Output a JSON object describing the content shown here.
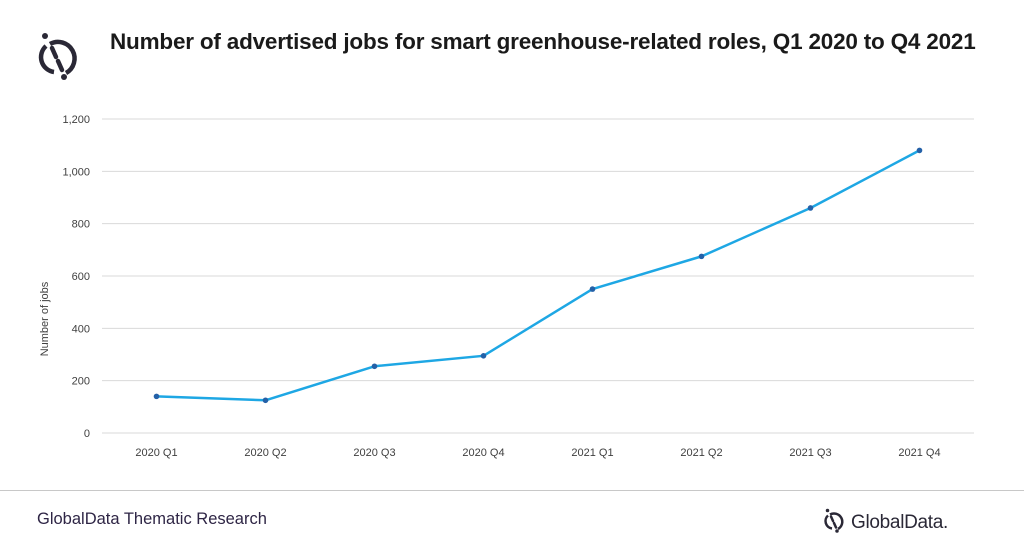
{
  "header": {
    "title": "Number of advertised jobs for smart greenhouse-related roles, Q1 2020 to Q4 2021",
    "logo_icon": "globaldata-logo-icon"
  },
  "footer": {
    "source": "GlobalData Thematic Research",
    "brand": "GlobalData."
  },
  "colors": {
    "line": "#1ea7e4",
    "marker": "#2461a8",
    "grid": "#d9d9d9",
    "brand": "#2a2836"
  },
  "chart_data": {
    "type": "line",
    "title": "Number of advertised jobs for smart greenhouse-related roles, Q1 2020 to Q4 2021",
    "xlabel": "",
    "ylabel": "Number of jobs",
    "categories": [
      "2020 Q1",
      "2020 Q2",
      "2020 Q3",
      "2020 Q4",
      "2021 Q1",
      "2021 Q2",
      "2021 Q3",
      "2021 Q4"
    ],
    "series": [
      {
        "name": "Number of jobs",
        "values": [
          140,
          125,
          255,
          295,
          550,
          675,
          860,
          1080
        ]
      }
    ],
    "ylim": [
      0,
      1200
    ],
    "yticks": [
      0,
      200,
      400,
      600,
      800,
      1000,
      1200
    ],
    "ytick_labels": [
      "0",
      "200",
      "400",
      "600",
      "800",
      "1,000",
      "1,200"
    ],
    "grid": true,
    "legend": "none"
  }
}
